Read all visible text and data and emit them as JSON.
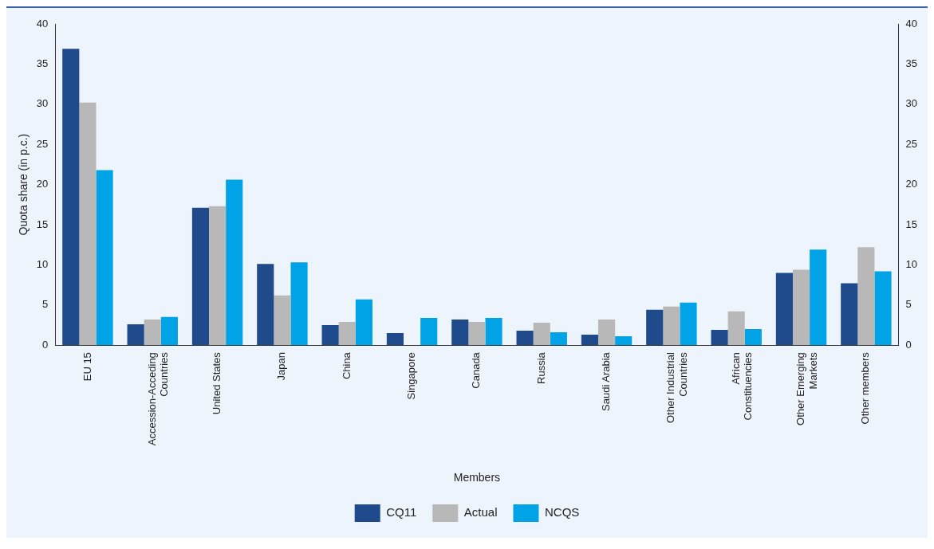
{
  "chart_data": {
    "type": "bar",
    "xlabel": "Members",
    "ylabel": "Quota share (in p.c.)",
    "categories": [
      "EU 15",
      "Accession-Acceding Countries",
      "United States",
      "Japan",
      "China",
      "Singapore",
      "Canada",
      "Russia",
      "Saudi Arabia",
      "Other Industrial Countries",
      "African Constituencies",
      "Other Emerging Markets",
      "Other members"
    ],
    "series": [
      {
        "name": "CQ11",
        "color": "#1f4a8c",
        "values": [
          36.9,
          2.6,
          17.1,
          10.1,
          2.5,
          1.5,
          3.2,
          1.8,
          1.3,
          4.4,
          1.9,
          9.0,
          7.7
        ]
      },
      {
        "name": "Actual",
        "color": "#b8b8b8",
        "values": [
          30.2,
          3.2,
          17.3,
          6.2,
          2.9,
          0,
          2.9,
          2.8,
          3.2,
          4.8,
          4.2,
          9.4,
          12.2
        ]
      },
      {
        "name": "NCQS",
        "color": "#00a3e6",
        "values": [
          21.8,
          3.5,
          20.6,
          10.3,
          5.7,
          3.4,
          3.4,
          1.6,
          1.1,
          5.3,
          2.0,
          11.9,
          9.2
        ]
      }
    ],
    "ylim": [
      0,
      40
    ],
    "yticks": [
      0,
      5,
      10,
      15,
      20,
      25,
      30,
      35,
      40
    ],
    "y2lim": [
      0,
      40
    ],
    "y2ticks": [
      0,
      5,
      10,
      15,
      20,
      25,
      30,
      35,
      40
    ],
    "grid": false,
    "legend": "bottom"
  }
}
